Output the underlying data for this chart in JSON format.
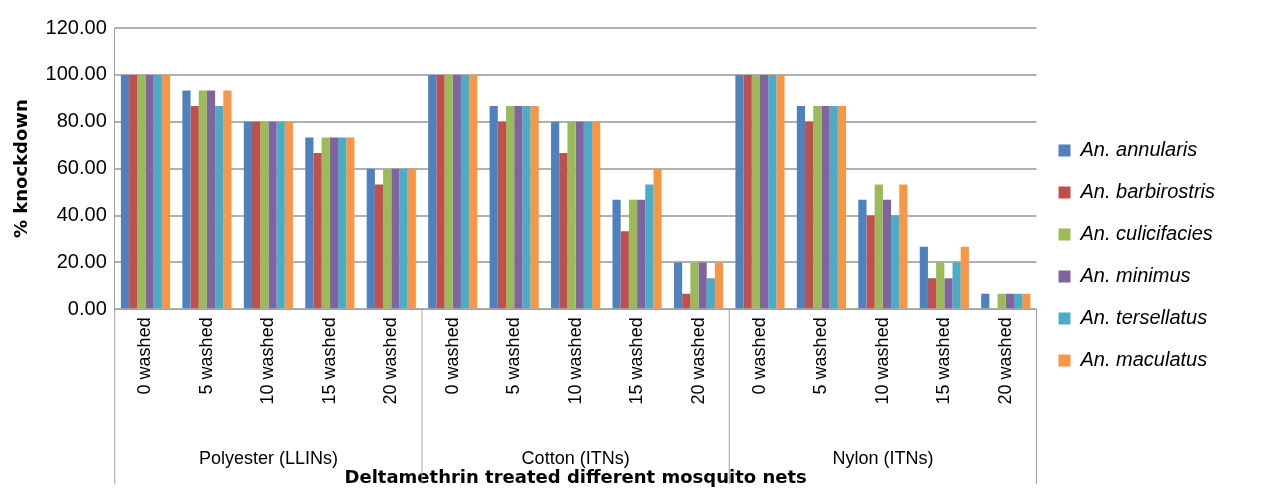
{
  "chart_data": {
    "type": "bar",
    "ylabel": "% knockdown",
    "xlabel": "Deltamethrin treated different mosquito nets",
    "categories": [
      "0 washed",
      "5 washed",
      "10 washed",
      "15 washed",
      "20 washed",
      "0 washed",
      "5 washed",
      "10 washed",
      "15 washed",
      "20 washed",
      "0 washed",
      "5 washed",
      "10 washed",
      "15 washed",
      "20 washed"
    ],
    "annotations": [
      "Polyester (LLINs)",
      "Cotton (ITNs)",
      "Nylon (ITNs)"
    ],
    "series": [
      {
        "name": "An. annularis",
        "color": "#4f81bd",
        "values": [
          100,
          93.3,
          80,
          73.3,
          60,
          100,
          86.7,
          80,
          46.7,
          20,
          100,
          86.7,
          46.7,
          26.7,
          6.7
        ]
      },
      {
        "name": "An. barbirostris",
        "color": "#c0504d",
        "values": [
          100,
          86.7,
          80,
          66.7,
          53.3,
          100,
          80,
          66.7,
          33.3,
          6.7,
          100,
          80,
          40,
          13.3,
          0
        ]
      },
      {
        "name": "An. culicifacies",
        "color": "#9bbb59",
        "values": [
          100,
          93.3,
          80,
          73.3,
          60,
          100,
          86.7,
          80,
          46.7,
          20,
          100,
          86.7,
          53.3,
          20,
          6.7
        ]
      },
      {
        "name": "An. minimus",
        "color": "#8064a2",
        "values": [
          100,
          93.3,
          80,
          73.3,
          60,
          100,
          86.7,
          80,
          46.7,
          20,
          100,
          86.7,
          46.7,
          13.3,
          6.7
        ]
      },
      {
        "name": "An. tersellatus",
        "color": "#4bacc6",
        "values": [
          100,
          86.7,
          80,
          73.3,
          60,
          100,
          86.7,
          80,
          53.3,
          13.3,
          100,
          86.7,
          40,
          20,
          6.7
        ]
      },
      {
        "name": "An. maculatus",
        "color": "#f79646",
        "values": [
          100,
          93.3,
          80,
          73.3,
          60,
          100,
          86.7,
          80,
          60,
          20,
          100,
          86.7,
          53.3,
          26.7,
          6.7
        ]
      }
    ],
    "ylim": [
      0,
      120
    ],
    "yticks": [
      {
        "value": 0,
        "label": "0.00"
      },
      {
        "value": 20,
        "label": "20.00"
      },
      {
        "value": 40,
        "label": "40.00"
      },
      {
        "value": 60,
        "label": "60.00"
      },
      {
        "value": 80,
        "label": "80.00"
      },
      {
        "value": 100,
        "label": "100.00"
      },
      {
        "value": 120,
        "label": "120.00"
      }
    ],
    "grid": "y",
    "legend": "right"
  }
}
